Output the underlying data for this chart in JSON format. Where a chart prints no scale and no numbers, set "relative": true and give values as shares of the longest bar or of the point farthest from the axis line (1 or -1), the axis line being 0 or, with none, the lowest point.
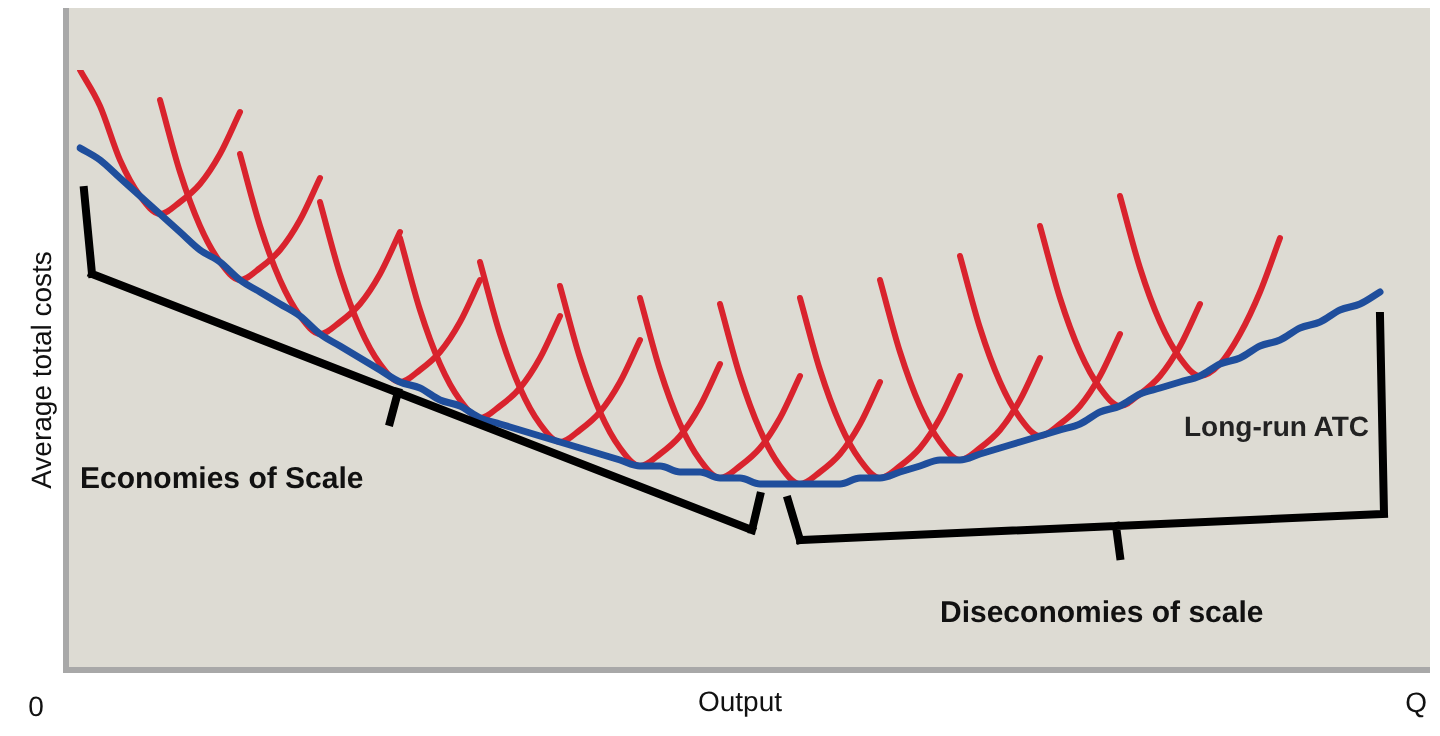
{
  "chart_data": {
    "type": "line",
    "relative": true,
    "xlabel": "Output",
    "ylabel": "Average total costs",
    "legend": false,
    "marker": "none",
    "line_style": "solid",
    "categories": [
      null,
      null,
      null,
      null,
      null,
      null,
      null,
      null,
      null,
      null,
      null,
      null,
      null,
      null,
      null,
      null,
      null,
      null,
      null,
      null,
      null,
      null,
      null,
      null,
      null,
      null,
      null,
      null,
      null,
      null,
      null,
      null,
      null,
      null,
      null,
      null,
      null,
      null,
      null,
      null,
      null,
      null,
      null,
      null,
      null,
      null,
      null,
      null,
      null,
      null,
      null,
      null,
      null,
      null,
      null,
      null,
      null,
      null,
      null,
      null,
      null,
      null,
      null,
      null,
      null,
      null,
      null
    ],
    "annotations": [
      "0",
      "Q",
      "Economies of Scale",
      "Diseconomies of scale"
    ],
    "series": [
      {
        "color": "#d9232d",
        "values": [
          1.0,
          0.94,
          0.85,
          0.79,
          0.76,
          0.78,
          0.81,
          0.86,
          0.93,
          null,
          null,
          null,
          null,
          null,
          null,
          null,
          null,
          null,
          null,
          null,
          null,
          null,
          null,
          null,
          null,
          null,
          null,
          null,
          null,
          null,
          null,
          null,
          null,
          null,
          null,
          null,
          null,
          null,
          null,
          null,
          null,
          null,
          null,
          null,
          null,
          null,
          null,
          null,
          null,
          null,
          null,
          null,
          null,
          null,
          null,
          null,
          null,
          null,
          null,
          null,
          null,
          null,
          null,
          null,
          null,
          null,
          null
        ]
      },
      {
        "color": "#d9232d",
        "values": [
          null,
          null,
          null,
          null,
          0.95,
          0.83,
          0.74,
          0.68,
          0.65,
          0.67,
          0.7,
          0.75,
          0.82,
          null,
          null,
          null,
          null,
          null,
          null,
          null,
          null,
          null,
          null,
          null,
          null,
          null,
          null,
          null,
          null,
          null,
          null,
          null,
          null,
          null,
          null,
          null,
          null,
          null,
          null,
          null,
          null,
          null,
          null,
          null,
          null,
          null,
          null,
          null,
          null,
          null,
          null,
          null,
          null,
          null,
          null,
          null,
          null,
          null,
          null,
          null,
          null,
          null,
          null,
          null,
          null,
          null,
          null
        ]
      },
      {
        "color": "#d9232d",
        "values": [
          null,
          null,
          null,
          null,
          null,
          null,
          null,
          null,
          0.86,
          0.74,
          0.65,
          0.59,
          0.56,
          0.58,
          0.61,
          0.66,
          0.73,
          null,
          null,
          null,
          null,
          null,
          null,
          null,
          null,
          null,
          null,
          null,
          null,
          null,
          null,
          null,
          null,
          null,
          null,
          null,
          null,
          null,
          null,
          null,
          null,
          null,
          null,
          null,
          null,
          null,
          null,
          null,
          null,
          null,
          null,
          null,
          null,
          null,
          null,
          null,
          null,
          null,
          null,
          null,
          null,
          null,
          null,
          null,
          null,
          null,
          null
        ]
      },
      {
        "color": "#d9232d",
        "values": [
          null,
          null,
          null,
          null,
          null,
          null,
          null,
          null,
          null,
          null,
          null,
          null,
          0.78,
          0.66,
          0.57,
          0.51,
          0.48,
          0.5,
          0.53,
          0.58,
          0.65,
          null,
          null,
          null,
          null,
          null,
          null,
          null,
          null,
          null,
          null,
          null,
          null,
          null,
          null,
          null,
          null,
          null,
          null,
          null,
          null,
          null,
          null,
          null,
          null,
          null,
          null,
          null,
          null,
          null,
          null,
          null,
          null,
          null,
          null,
          null,
          null,
          null,
          null,
          null,
          null,
          null,
          null,
          null,
          null,
          null,
          null
        ]
      },
      {
        "color": "#d9232d",
        "values": [
          null,
          null,
          null,
          null,
          null,
          null,
          null,
          null,
          null,
          null,
          null,
          null,
          null,
          null,
          null,
          null,
          0.72,
          0.6,
          0.51,
          0.45,
          0.42,
          0.44,
          0.47,
          0.52,
          0.59,
          null,
          null,
          null,
          null,
          null,
          null,
          null,
          null,
          null,
          null,
          null,
          null,
          null,
          null,
          null,
          null,
          null,
          null,
          null,
          null,
          null,
          null,
          null,
          null,
          null,
          null,
          null,
          null,
          null,
          null,
          null,
          null,
          null,
          null,
          null,
          null,
          null,
          null,
          null,
          null,
          null,
          null
        ]
      },
      {
        "color": "#d9232d",
        "values": [
          null,
          null,
          null,
          null,
          null,
          null,
          null,
          null,
          null,
          null,
          null,
          null,
          null,
          null,
          null,
          null,
          null,
          null,
          null,
          null,
          0.68,
          0.56,
          0.47,
          0.41,
          0.38,
          0.4,
          0.43,
          0.48,
          0.55,
          null,
          null,
          null,
          null,
          null,
          null,
          null,
          null,
          null,
          null,
          null,
          null,
          null,
          null,
          null,
          null,
          null,
          null,
          null,
          null,
          null,
          null,
          null,
          null,
          null,
          null,
          null,
          null,
          null,
          null,
          null,
          null,
          null,
          null,
          null,
          null,
          null,
          null
        ]
      },
      {
        "color": "#d9232d",
        "values": [
          null,
          null,
          null,
          null,
          null,
          null,
          null,
          null,
          null,
          null,
          null,
          null,
          null,
          null,
          null,
          null,
          null,
          null,
          null,
          null,
          null,
          null,
          null,
          null,
          0.64,
          0.52,
          0.43,
          0.37,
          0.34,
          0.36,
          0.39,
          0.44,
          0.51,
          null,
          null,
          null,
          null,
          null,
          null,
          null,
          null,
          null,
          null,
          null,
          null,
          null,
          null,
          null,
          null,
          null,
          null,
          null,
          null,
          null,
          null,
          null,
          null,
          null,
          null,
          null,
          null,
          null,
          null,
          null,
          null,
          null,
          null
        ]
      },
      {
        "color": "#d9232d",
        "values": [
          null,
          null,
          null,
          null,
          null,
          null,
          null,
          null,
          null,
          null,
          null,
          null,
          null,
          null,
          null,
          null,
          null,
          null,
          null,
          null,
          null,
          null,
          null,
          null,
          null,
          null,
          null,
          null,
          0.62,
          0.5,
          0.41,
          0.35,
          0.32,
          0.34,
          0.37,
          0.42,
          0.49,
          null,
          null,
          null,
          null,
          null,
          null,
          null,
          null,
          null,
          null,
          null,
          null,
          null,
          null,
          null,
          null,
          null,
          null,
          null,
          null,
          null,
          null,
          null,
          null,
          null,
          null,
          null,
          null,
          null,
          null
        ]
      },
      {
        "color": "#d9232d",
        "values": [
          null,
          null,
          null,
          null,
          null,
          null,
          null,
          null,
          null,
          null,
          null,
          null,
          null,
          null,
          null,
          null,
          null,
          null,
          null,
          null,
          null,
          null,
          null,
          null,
          null,
          null,
          null,
          null,
          null,
          null,
          null,
          null,
          0.61,
          0.49,
          0.4,
          0.34,
          0.31,
          0.33,
          0.36,
          0.41,
          0.48,
          null,
          null,
          null,
          null,
          null,
          null,
          null,
          null,
          null,
          null,
          null,
          null,
          null,
          null,
          null,
          null,
          null,
          null,
          null,
          null,
          null,
          null,
          null,
          null,
          null,
          null
        ]
      },
      {
        "color": "#d9232d",
        "values": [
          null,
          null,
          null,
          null,
          null,
          null,
          null,
          null,
          null,
          null,
          null,
          null,
          null,
          null,
          null,
          null,
          null,
          null,
          null,
          null,
          null,
          null,
          null,
          null,
          null,
          null,
          null,
          null,
          null,
          null,
          null,
          null,
          null,
          null,
          null,
          null,
          0.62,
          0.5,
          0.41,
          0.35,
          0.32,
          0.34,
          0.37,
          0.42,
          0.49,
          null,
          null,
          null,
          null,
          null,
          null,
          null,
          null,
          null,
          null,
          null,
          null,
          null,
          null,
          null,
          null,
          null,
          null,
          null,
          null,
          null,
          null
        ]
      },
      {
        "color": "#d9232d",
        "values": [
          null,
          null,
          null,
          null,
          null,
          null,
          null,
          null,
          null,
          null,
          null,
          null,
          null,
          null,
          null,
          null,
          null,
          null,
          null,
          null,
          null,
          null,
          null,
          null,
          null,
          null,
          null,
          null,
          null,
          null,
          null,
          null,
          null,
          null,
          null,
          null,
          null,
          null,
          null,
          null,
          0.65,
          0.53,
          0.44,
          0.38,
          0.35,
          0.37,
          0.4,
          0.45,
          0.52,
          null,
          null,
          null,
          null,
          null,
          null,
          null,
          null,
          null,
          null,
          null,
          null,
          null,
          null,
          null,
          null,
          null,
          null
        ]
      },
      {
        "color": "#d9232d",
        "values": [
          null,
          null,
          null,
          null,
          null,
          null,
          null,
          null,
          null,
          null,
          null,
          null,
          null,
          null,
          null,
          null,
          null,
          null,
          null,
          null,
          null,
          null,
          null,
          null,
          null,
          null,
          null,
          null,
          null,
          null,
          null,
          null,
          null,
          null,
          null,
          null,
          null,
          null,
          null,
          null,
          null,
          null,
          null,
          null,
          0.69,
          0.57,
          0.48,
          0.42,
          0.39,
          0.41,
          0.44,
          0.49,
          0.56,
          null,
          null,
          null,
          null,
          null,
          null,
          null,
          null,
          null,
          null,
          null,
          null,
          null,
          null
        ]
      },
      {
        "color": "#d9232d",
        "values": [
          null,
          null,
          null,
          null,
          null,
          null,
          null,
          null,
          null,
          null,
          null,
          null,
          null,
          null,
          null,
          null,
          null,
          null,
          null,
          null,
          null,
          null,
          null,
          null,
          null,
          null,
          null,
          null,
          null,
          null,
          null,
          null,
          null,
          null,
          null,
          null,
          null,
          null,
          null,
          null,
          null,
          null,
          null,
          null,
          null,
          null,
          null,
          null,
          0.74,
          0.62,
          0.53,
          0.47,
          0.44,
          0.46,
          0.49,
          0.54,
          0.61,
          null,
          null,
          null,
          null,
          null,
          null,
          null,
          null,
          null,
          null
        ]
      },
      {
        "color": "#d9232d",
        "values": [
          null,
          null,
          null,
          null,
          null,
          null,
          null,
          null,
          null,
          null,
          null,
          null,
          null,
          null,
          null,
          null,
          null,
          null,
          null,
          null,
          null,
          null,
          null,
          null,
          null,
          null,
          null,
          null,
          null,
          null,
          null,
          null,
          null,
          null,
          null,
          null,
          null,
          null,
          null,
          null,
          null,
          null,
          null,
          null,
          null,
          null,
          null,
          null,
          null,
          null,
          null,
          null,
          0.79,
          0.67,
          0.58,
          0.52,
          0.49,
          0.51,
          0.56,
          0.63,
          0.72,
          null,
          null,
          null,
          null,
          null,
          null
        ]
      },
      {
        "name": "Long-run ATC",
        "color": "#1f4e9c",
        "values": [
          0.87,
          0.85,
          0.82,
          0.79,
          0.76,
          0.73,
          0.7,
          0.68,
          0.65,
          0.63,
          0.61,
          0.59,
          0.56,
          0.54,
          0.52,
          0.5,
          0.48,
          0.47,
          0.45,
          0.44,
          0.42,
          0.41,
          0.4,
          0.39,
          0.38,
          0.37,
          0.36,
          0.35,
          0.34,
          0.34,
          0.33,
          0.33,
          0.32,
          0.32,
          0.31,
          0.31,
          0.31,
          0.31,
          0.31,
          0.32,
          0.32,
          0.33,
          0.34,
          0.35,
          0.35,
          0.36,
          0.37,
          0.38,
          0.39,
          0.4,
          0.41,
          0.43,
          0.44,
          0.46,
          0.47,
          0.48,
          0.49,
          0.51,
          0.52,
          0.54,
          0.55,
          0.57,
          0.58,
          0.6,
          0.61,
          0.63,
          null
        ]
      }
    ]
  }
}
